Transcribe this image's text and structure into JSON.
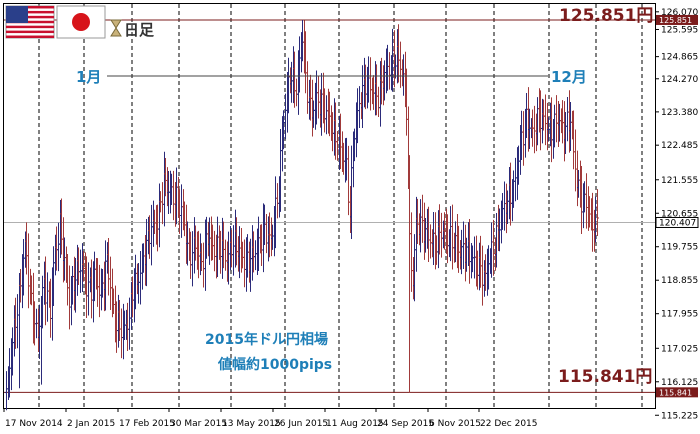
{
  "header": {
    "timeframe_label": "日足",
    "flags": [
      "us-flag-icon",
      "japan-flag-icon"
    ],
    "timeframe_icon": "hourglass-icon"
  },
  "annotations": {
    "high_label": "125.851円",
    "low_label": "115.841円",
    "start_month": "1月",
    "end_month": "12月",
    "note_line1": "2015年ドル円相場",
    "note_line2": "値幅約1000pips"
  },
  "colors": {
    "bull": "#2b2b7a",
    "bear": "#a13a3a",
    "level_line": "#7b1c1c",
    "label_blue": "#1e7fb8",
    "grid": "#000000"
  },
  "chart_data": {
    "type": "bar",
    "subtype": "ohlc",
    "title": "",
    "ylim": [
      115.42,
      126.28
    ],
    "y_ticks": [
      "126.070",
      "125.595",
      "124.865",
      "124.270",
      "123.380",
      "122.485",
      "121.555",
      "120.655",
      "119.755",
      "118.855",
      "117.955",
      "117.025",
      "116.125",
      "115.225"
    ],
    "x_ticks": [
      "17 Nov 2014",
      "2 Jan 2015",
      "17 Feb 2015",
      "30 Mar 2015",
      "13 May 2015",
      "26 Jun 2015",
      "11 Aug 2015",
      "24 Sep 2015",
      "6 Nov 2015",
      "22 Dec 2015"
    ],
    "current_price": "120.407",
    "high_price": "125.851",
    "low_price": "115.841",
    "grid": "vertical-dashed",
    "anchors": [
      [
        0,
        115.8
      ],
      [
        4,
        117.2
      ],
      [
        8,
        118.4
      ],
      [
        12,
        119.8
      ],
      [
        16,
        118.2
      ],
      [
        20,
        117.3
      ],
      [
        24,
        118.8
      ],
      [
        28,
        118.0
      ],
      [
        30,
        119.3
      ],
      [
        34,
        120.3
      ],
      [
        38,
        119.0
      ],
      [
        40,
        118.3
      ],
      [
        44,
        119.0
      ],
      [
        48,
        119.3
      ],
      [
        50,
        118.8
      ],
      [
        54,
        118.6
      ],
      [
        56,
        119.0
      ],
      [
        60,
        118.5
      ],
      [
        64,
        119.4
      ],
      [
        68,
        118.0
      ],
      [
        70,
        117.7
      ],
      [
        74,
        117.5
      ],
      [
        78,
        117.8
      ],
      [
        80,
        118.6
      ],
      [
        84,
        118.9
      ],
      [
        88,
        119.6
      ],
      [
        92,
        120.3
      ],
      [
        96,
        120.4
      ],
      [
        100,
        121.5
      ],
      [
        104,
        121.2
      ],
      [
        108,
        121.0
      ],
      [
        112,
        120.6
      ],
      [
        116,
        119.5
      ],
      [
        120,
        119.8
      ],
      [
        124,
        119.3
      ],
      [
        128,
        120.1
      ],
      [
        132,
        119.6
      ],
      [
        136,
        119.8
      ],
      [
        140,
        119.4
      ],
      [
        144,
        119.9
      ],
      [
        148,
        119.6
      ],
      [
        152,
        119.3
      ],
      [
        156,
        119.5
      ],
      [
        160,
        119.8
      ],
      [
        164,
        120.2
      ],
      [
        168,
        119.9
      ],
      [
        172,
        121.0
      ],
      [
        176,
        123.2
      ],
      [
        180,
        124.4
      ],
      [
        184,
        124.0
      ],
      [
        188,
        125.5
      ],
      [
        190,
        124.2
      ],
      [
        194,
        123.3
      ],
      [
        196,
        123.7
      ],
      [
        200,
        123.6
      ],
      [
        204,
        123.3
      ],
      [
        208,
        122.8
      ],
      [
        212,
        122.4
      ],
      [
        216,
        121.9
      ],
      [
        218,
        120.6
      ],
      [
        220,
        122.5
      ],
      [
        224,
        123.6
      ],
      [
        228,
        124.2
      ],
      [
        232,
        124.0
      ],
      [
        236,
        123.8
      ],
      [
        240,
        124.4
      ],
      [
        244,
        124.6
      ],
      [
        248,
        124.9
      ],
      [
        252,
        124.3
      ],
      [
        254,
        123.5
      ],
      [
        256,
        119.8
      ],
      [
        258,
        118.8
      ],
      [
        260,
        120.4
      ],
      [
        264,
        120.3
      ],
      [
        268,
        120.0
      ],
      [
        272,
        119.8
      ],
      [
        276,
        120.2
      ],
      [
        280,
        120.0
      ],
      [
        284,
        119.9
      ],
      [
        288,
        119.6
      ],
      [
        292,
        119.7
      ],
      [
        296,
        119.4
      ],
      [
        300,
        119.2
      ],
      [
        304,
        118.9
      ],
      [
        306,
        119.4
      ],
      [
        310,
        119.8
      ],
      [
        314,
        120.6
      ],
      [
        318,
        121.0
      ],
      [
        322,
        121.3
      ],
      [
        326,
        122.5
      ],
      [
        330,
        123.2
      ],
      [
        334,
        122.8
      ],
      [
        338,
        123.3
      ],
      [
        342,
        123.1
      ],
      [
        346,
        122.8
      ],
      [
        350,
        123.2
      ],
      [
        354,
        122.9
      ],
      [
        358,
        123.2
      ],
      [
        360,
        122.3
      ],
      [
        362,
        121.5
      ],
      [
        364,
        121.2
      ],
      [
        366,
        120.9
      ],
      [
        368,
        121.0
      ],
      [
        370,
        120.6
      ],
      [
        372,
        120.3
      ],
      [
        374,
        120.5
      ]
    ]
  }
}
